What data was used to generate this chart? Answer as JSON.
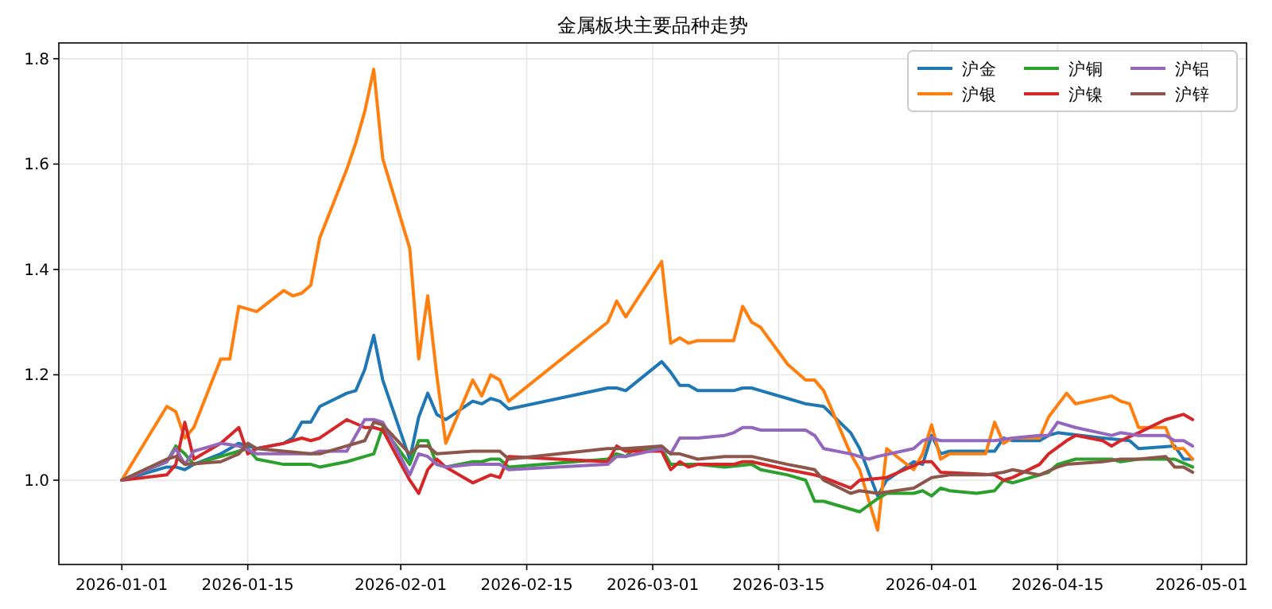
{
  "chart_data": {
    "type": "line",
    "title": "金属板块主要品种走势",
    "xlim": [
      "2025-12-25",
      "2026-05-06"
    ],
    "ylim": [
      0.84,
      1.83
    ],
    "xticks": [
      "2026-01-01",
      "2026-01-15",
      "2026-02-01",
      "2026-02-15",
      "2026-03-01",
      "2026-03-15",
      "2026-04-01",
      "2026-04-15",
      "2026-05-01"
    ],
    "yticks": [
      {
        "value": 1.0,
        "label": "1.0"
      },
      {
        "value": 1.2,
        "label": "1.2"
      },
      {
        "value": 1.4,
        "label": "1.4"
      },
      {
        "value": 1.6,
        "label": "1.6"
      },
      {
        "value": 1.8,
        "label": "1.8"
      }
    ],
    "grid": true,
    "legend": "top right",
    "line_style": "solid",
    "marker": "none",
    "series": [
      {
        "name": "沪金",
        "color": "#1f77b4",
        "x": [
          "2026-01-01",
          "2026-01-06",
          "2026-01-07",
          "2026-01-08",
          "2026-01-09",
          "2026-01-12",
          "2026-01-13",
          "2026-01-14",
          "2026-01-16",
          "2026-01-19",
          "2026-01-20",
          "2026-01-21",
          "2026-01-22",
          "2026-01-23",
          "2026-01-26",
          "2026-01-27",
          "2026-01-28",
          "2026-01-29",
          "2026-01-30",
          "2026-02-02",
          "2026-02-03",
          "2026-02-04",
          "2026-02-05",
          "2026-02-06",
          "2026-02-09",
          "2026-02-10",
          "2026-02-11",
          "2026-02-12",
          "2026-02-13",
          "2026-02-24",
          "2026-02-25",
          "2026-02-26",
          "2026-03-02",
          "2026-03-03",
          "2026-03-04",
          "2026-03-05",
          "2026-03-06",
          "2026-03-09",
          "2026-03-10",
          "2026-03-11",
          "2026-03-12",
          "2026-03-13",
          "2026-03-16",
          "2026-03-18",
          "2026-03-20",
          "2026-03-23",
          "2026-03-24",
          "2026-03-26",
          "2026-03-27",
          "2026-03-30",
          "2026-03-31",
          "2026-04-01",
          "2026-04-02",
          "2026-04-03",
          "2026-04-08",
          "2026-04-09",
          "2026-04-10",
          "2026-04-13",
          "2026-04-14",
          "2026-04-15",
          "2026-04-20",
          "2026-04-23",
          "2026-04-24",
          "2026-04-28",
          "2026-04-29",
          "2026-04-30"
        ],
        "values": [
          1.0,
          1.025,
          1.025,
          1.02,
          1.03,
          1.05,
          1.06,
          1.07,
          1.06,
          1.07,
          1.08,
          1.11,
          1.11,
          1.14,
          1.165,
          1.17,
          1.21,
          1.275,
          1.19,
          1.04,
          1.12,
          1.165,
          1.125,
          1.115,
          1.15,
          1.145,
          1.155,
          1.15,
          1.135,
          1.175,
          1.175,
          1.17,
          1.225,
          1.205,
          1.18,
          1.18,
          1.17,
          1.17,
          1.17,
          1.175,
          1.175,
          1.17,
          1.155,
          1.145,
          1.14,
          1.09,
          1.06,
          0.97,
          1.0,
          1.035,
          1.03,
          1.085,
          1.05,
          1.055,
          1.055,
          1.08,
          1.075,
          1.075,
          1.085,
          1.09,
          1.08,
          1.075,
          1.06,
          1.065,
          1.04,
          1.04
        ]
      },
      {
        "name": "沪银",
        "color": "#ff7f0e",
        "x": [
          "2026-01-01",
          "2026-01-06",
          "2026-01-07",
          "2026-01-08",
          "2026-01-09",
          "2026-01-12",
          "2026-01-13",
          "2026-01-14",
          "2026-01-16",
          "2026-01-19",
          "2026-01-20",
          "2026-01-21",
          "2026-01-22",
          "2026-01-23",
          "2026-01-26",
          "2026-01-27",
          "2026-01-28",
          "2026-01-29",
          "2026-01-30",
          "2026-02-02",
          "2026-02-03",
          "2026-02-04",
          "2026-02-05",
          "2026-02-06",
          "2026-02-09",
          "2026-02-10",
          "2026-02-11",
          "2026-02-12",
          "2026-02-13",
          "2026-02-24",
          "2026-02-25",
          "2026-02-26",
          "2026-03-02",
          "2026-03-03",
          "2026-03-04",
          "2026-03-05",
          "2026-03-06",
          "2026-03-09",
          "2026-03-10",
          "2026-03-11",
          "2026-03-12",
          "2026-03-13",
          "2026-03-16",
          "2026-03-18",
          "2026-03-19",
          "2026-03-20",
          "2026-03-23",
          "2026-03-24",
          "2026-03-26",
          "2026-03-27",
          "2026-03-30",
          "2026-03-31",
          "2026-04-01",
          "2026-04-02",
          "2026-04-03",
          "2026-04-07",
          "2026-04-08",
          "2026-04-09",
          "2026-04-10",
          "2026-04-13",
          "2026-04-14",
          "2026-04-16",
          "2026-04-17",
          "2026-04-21",
          "2026-04-22",
          "2026-04-23",
          "2026-04-24",
          "2026-04-27",
          "2026-04-28",
          "2026-04-29",
          "2026-04-30"
        ],
        "values": [
          1.0,
          1.14,
          1.13,
          1.08,
          1.1,
          1.23,
          1.23,
          1.33,
          1.32,
          1.36,
          1.35,
          1.355,
          1.37,
          1.46,
          1.59,
          1.64,
          1.7,
          1.78,
          1.61,
          1.44,
          1.23,
          1.35,
          1.2,
          1.07,
          1.19,
          1.16,
          1.2,
          1.19,
          1.15,
          1.3,
          1.34,
          1.31,
          1.415,
          1.26,
          1.27,
          1.26,
          1.265,
          1.265,
          1.265,
          1.33,
          1.3,
          1.29,
          1.22,
          1.19,
          1.19,
          1.17,
          1.05,
          1.02,
          0.905,
          1.06,
          1.02,
          1.05,
          1.105,
          1.04,
          1.05,
          1.05,
          1.11,
          1.07,
          1.08,
          1.08,
          1.12,
          1.165,
          1.145,
          1.16,
          1.15,
          1.145,
          1.1,
          1.1,
          1.06,
          1.06,
          1.04
        ]
      },
      {
        "name": "沪铜",
        "color": "#2ca02c",
        "x": [
          "2026-01-01",
          "2026-01-06",
          "2026-01-07",
          "2026-01-08",
          "2026-01-09",
          "2026-01-12",
          "2026-01-14",
          "2026-01-15",
          "2026-01-16",
          "2026-01-19",
          "2026-01-22",
          "2026-01-23",
          "2026-01-26",
          "2026-01-28",
          "2026-01-29",
          "2026-01-30",
          "2026-02-02",
          "2026-02-03",
          "2026-02-04",
          "2026-02-05",
          "2026-02-06",
          "2026-02-09",
          "2026-02-10",
          "2026-02-11",
          "2026-02-12",
          "2026-02-13",
          "2026-02-24",
          "2026-02-25",
          "2026-02-26",
          "2026-02-27",
          "2026-03-02",
          "2026-03-03",
          "2026-03-06",
          "2026-03-09",
          "2026-03-12",
          "2026-03-13",
          "2026-03-16",
          "2026-03-18",
          "2026-03-19",
          "2026-03-20",
          "2026-03-24",
          "2026-03-26",
          "2026-03-27",
          "2026-03-30",
          "2026-03-31",
          "2026-04-01",
          "2026-04-02",
          "2026-04-03",
          "2026-04-06",
          "2026-04-08",
          "2026-04-09",
          "2026-04-10",
          "2026-04-14",
          "2026-04-15",
          "2026-04-17",
          "2026-04-21",
          "2026-04-22",
          "2026-04-24",
          "2026-04-28",
          "2026-04-30"
        ],
        "values": [
          1.0,
          1.035,
          1.065,
          1.05,
          1.03,
          1.045,
          1.055,
          1.06,
          1.04,
          1.03,
          1.03,
          1.025,
          1.035,
          1.045,
          1.05,
          1.1,
          1.03,
          1.075,
          1.075,
          1.03,
          1.025,
          1.035,
          1.035,
          1.04,
          1.04,
          1.025,
          1.04,
          1.05,
          1.045,
          1.06,
          1.06,
          1.03,
          1.03,
          1.025,
          1.03,
          1.02,
          1.01,
          1.0,
          0.96,
          0.96,
          0.94,
          0.965,
          0.975,
          0.975,
          0.98,
          0.97,
          0.985,
          0.98,
          0.975,
          0.98,
          1.0,
          0.995,
          1.015,
          1.03,
          1.04,
          1.04,
          1.035,
          1.04,
          1.04,
          1.025
        ]
      },
      {
        "name": "沪镍",
        "color": "#d62728",
        "x": [
          "2026-01-01",
          "2026-01-06",
          "2026-01-07",
          "2026-01-08",
          "2026-01-09",
          "2026-01-12",
          "2026-01-13",
          "2026-01-14",
          "2026-01-15",
          "2026-01-16",
          "2026-01-19",
          "2026-01-20",
          "2026-01-21",
          "2026-01-22",
          "2026-01-23",
          "2026-01-26",
          "2026-01-28",
          "2026-01-29",
          "2026-01-30",
          "2026-02-02",
          "2026-02-03",
          "2026-02-04",
          "2026-02-05",
          "2026-02-06",
          "2026-02-09",
          "2026-02-11",
          "2026-02-12",
          "2026-02-13",
          "2026-02-24",
          "2026-02-25",
          "2026-02-26",
          "2026-03-02",
          "2026-03-03",
          "2026-03-04",
          "2026-03-05",
          "2026-03-06",
          "2026-03-10",
          "2026-03-11",
          "2026-03-12",
          "2026-03-16",
          "2026-03-19",
          "2026-03-20",
          "2026-03-23",
          "2026-03-24",
          "2026-03-27",
          "2026-03-31",
          "2026-04-01",
          "2026-04-02",
          "2026-04-08",
          "2026-04-09",
          "2026-04-10",
          "2026-04-13",
          "2026-04-14",
          "2026-04-16",
          "2026-04-17",
          "2026-04-20",
          "2026-04-21",
          "2026-04-22",
          "2026-04-24",
          "2026-04-27",
          "2026-04-28",
          "2026-04-29",
          "2026-04-30"
        ],
        "values": [
          1.0,
          1.01,
          1.03,
          1.11,
          1.04,
          1.07,
          1.085,
          1.1,
          1.05,
          1.06,
          1.07,
          1.075,
          1.08,
          1.075,
          1.08,
          1.115,
          1.1,
          1.1,
          1.095,
          1.0,
          0.975,
          1.02,
          1.04,
          1.025,
          0.995,
          1.01,
          1.005,
          1.045,
          1.035,
          1.065,
          1.055,
          1.055,
          1.02,
          1.035,
          1.025,
          1.03,
          1.03,
          1.035,
          1.035,
          1.02,
          1.01,
          1.005,
          0.985,
          1.0,
          1.005,
          1.035,
          1.035,
          1.015,
          1.01,
          1.0,
          1.005,
          1.03,
          1.05,
          1.075,
          1.085,
          1.075,
          1.065,
          1.075,
          1.09,
          1.115,
          1.12,
          1.125,
          1.115
        ]
      },
      {
        "name": "沪铝",
        "color": "#9467bd",
        "x": [
          "2026-01-01",
          "2026-01-06",
          "2026-01-07",
          "2026-01-08",
          "2026-01-09",
          "2026-01-12",
          "2026-01-14",
          "2026-01-16",
          "2026-01-19",
          "2026-01-22",
          "2026-01-23",
          "2026-01-26",
          "2026-01-28",
          "2026-01-29",
          "2026-01-30",
          "2026-02-02",
          "2026-02-03",
          "2026-02-04",
          "2026-02-05",
          "2026-02-06",
          "2026-02-09",
          "2026-02-12",
          "2026-02-13",
          "2026-02-24",
          "2026-02-25",
          "2026-02-26",
          "2026-03-02",
          "2026-03-03",
          "2026-03-04",
          "2026-03-05",
          "2026-03-06",
          "2026-03-09",
          "2026-03-10",
          "2026-03-11",
          "2026-03-12",
          "2026-03-13",
          "2026-03-16",
          "2026-03-18",
          "2026-03-19",
          "2026-03-20",
          "2026-03-23",
          "2026-03-25",
          "2026-03-26",
          "2026-03-30",
          "2026-03-31",
          "2026-04-01",
          "2026-04-02",
          "2026-04-08",
          "2026-04-10",
          "2026-04-13",
          "2026-04-14",
          "2026-04-15",
          "2026-04-17",
          "2026-04-21",
          "2026-04-22",
          "2026-04-24",
          "2026-04-27",
          "2026-04-28",
          "2026-04-29",
          "2026-04-30"
        ],
        "values": [
          1.0,
          1.035,
          1.06,
          1.03,
          1.055,
          1.07,
          1.065,
          1.05,
          1.05,
          1.05,
          1.055,
          1.055,
          1.115,
          1.115,
          1.11,
          1.01,
          1.05,
          1.045,
          1.03,
          1.025,
          1.03,
          1.03,
          1.02,
          1.03,
          1.045,
          1.045,
          1.06,
          1.05,
          1.08,
          1.08,
          1.08,
          1.085,
          1.09,
          1.1,
          1.1,
          1.095,
          1.095,
          1.095,
          1.085,
          1.06,
          1.05,
          1.04,
          1.045,
          1.06,
          1.075,
          1.08,
          1.075,
          1.075,
          1.08,
          1.085,
          1.085,
          1.11,
          1.1,
          1.085,
          1.09,
          1.085,
          1.085,
          1.075,
          1.075,
          1.065
        ]
      },
      {
        "name": "沪锌",
        "color": "#8c564b",
        "x": [
          "2026-01-01",
          "2026-01-06",
          "2026-01-07",
          "2026-01-08",
          "2026-01-12",
          "2026-01-14",
          "2026-01-15",
          "2026-01-16",
          "2026-01-19",
          "2026-01-22",
          "2026-01-23",
          "2026-01-26",
          "2026-01-28",
          "2026-01-29",
          "2026-01-30",
          "2026-02-02",
          "2026-02-03",
          "2026-02-04",
          "2026-02-05",
          "2026-02-09",
          "2026-02-11",
          "2026-02-12",
          "2026-02-13",
          "2026-02-24",
          "2026-02-26",
          "2026-03-02",
          "2026-03-03",
          "2026-03-04",
          "2026-03-06",
          "2026-03-09",
          "2026-03-12",
          "2026-03-16",
          "2026-03-19",
          "2026-03-20",
          "2026-03-23",
          "2026-03-24",
          "2026-03-26",
          "2026-03-30",
          "2026-04-01",
          "2026-04-03",
          "2026-04-07",
          "2026-04-09",
          "2026-04-10",
          "2026-04-13",
          "2026-04-15",
          "2026-04-16",
          "2026-04-20",
          "2026-04-22",
          "2026-04-24",
          "2026-04-27",
          "2026-04-28",
          "2026-04-29",
          "2026-04-30"
        ],
        "values": [
          1.0,
          1.04,
          1.045,
          1.03,
          1.035,
          1.05,
          1.07,
          1.06,
          1.055,
          1.05,
          1.05,
          1.065,
          1.075,
          1.11,
          1.105,
          1.05,
          1.065,
          1.065,
          1.05,
          1.055,
          1.055,
          1.055,
          1.04,
          1.06,
          1.06,
          1.065,
          1.05,
          1.05,
          1.04,
          1.045,
          1.045,
          1.03,
          1.02,
          1.0,
          0.975,
          0.98,
          0.975,
          0.985,
          1.005,
          1.01,
          1.01,
          1.015,
          1.02,
          1.01,
          1.025,
          1.03,
          1.035,
          1.04,
          1.04,
          1.045,
          1.025,
          1.025,
          1.015
        ]
      }
    ]
  }
}
